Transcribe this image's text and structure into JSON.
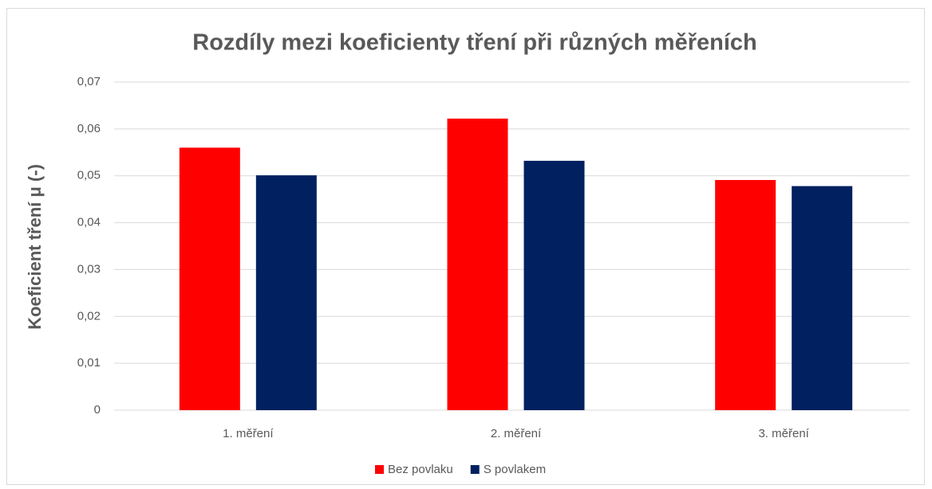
{
  "chart_data": {
    "type": "bar",
    "title": "Rozdíly mezi koeficienty tření při různých měřeních",
    "y_label": "Koeficient tření μ (-)",
    "categories": [
      "1. měření",
      "2. měření",
      "3. měření"
    ],
    "series": [
      {
        "name": "Bez povlaku",
        "color": "#ff0000",
        "values": [
          0.056,
          0.0622,
          0.0491
        ]
      },
      {
        "name": "S povlakem",
        "color": "#002060",
        "values": [
          0.0501,
          0.0532,
          0.0478
        ]
      }
    ],
    "ylim": [
      0,
      0.07
    ],
    "yticks": [
      0,
      {
        "value": 0.01,
        "label": "0,01"
      },
      {
        "value": 0.02,
        "label": "0,02"
      },
      {
        "value": 0.03,
        "label": "0,03"
      },
      {
        "value": 0.04,
        "label": "0,04"
      },
      {
        "value": 0.05,
        "label": "0,05"
      },
      {
        "value": 0.06,
        "label": "0,06"
      },
      {
        "value": 0.07,
        "label": "0,07"
      }
    ],
    "grid": true,
    "legend": "bottom"
  }
}
